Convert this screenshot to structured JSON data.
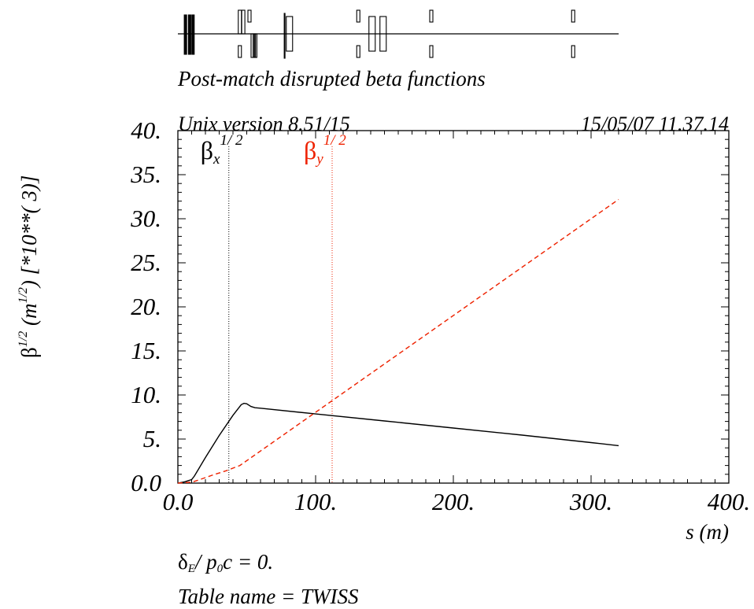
{
  "header": {
    "title": "Post-match disrupted beta functions",
    "version": "Unix version 8.51/15",
    "timestamp": "15/05/07  11.37.14"
  },
  "footer": {
    "delta_text": "δE/ p0c  =  0.",
    "table_text": "Table name = TWISS"
  },
  "colors": {
    "bx": "#000000",
    "by": "#ee2200"
  },
  "chart_data": {
    "type": "line",
    "title": "Post-match disrupted beta functions",
    "xlabel": "s (m)",
    "ylabel": "β1/2 (m1/2)   [*10**( 3)]",
    "xlim": [
      0,
      400
    ],
    "ylim": [
      0,
      40
    ],
    "x_ticks": [
      "0.0",
      "100.",
      "200.",
      "300.",
      "400."
    ],
    "y_ticks": [
      "0.0",
      "5.",
      "10.",
      "15.",
      "20.",
      "25.",
      "30.",
      "35.",
      "40."
    ],
    "legend": [
      {
        "label": "βx1/2",
        "line_style": "dotted",
        "color": "#000000",
        "x": 37
      },
      {
        "label": "βy1/2",
        "line_style": "dotted",
        "color": "#ee2200",
        "x": 112
      }
    ],
    "series": [
      {
        "name": "βx1/2",
        "color": "#000000",
        "style": "solid",
        "points": [
          [
            0,
            0
          ],
          [
            5,
            0.15
          ],
          [
            10,
            0.4
          ],
          [
            12,
            0.8
          ],
          [
            20,
            2.9
          ],
          [
            30,
            5.4
          ],
          [
            40,
            7.7
          ],
          [
            46,
            8.9
          ],
          [
            48,
            9.05
          ],
          [
            50,
            9.0
          ],
          [
            53,
            8.7
          ],
          [
            56,
            8.55
          ],
          [
            60,
            8.5
          ],
          [
            100,
            7.85
          ],
          [
            150,
            7.05
          ],
          [
            200,
            6.25
          ],
          [
            250,
            5.45
          ],
          [
            300,
            4.6
          ],
          [
            320,
            4.25
          ]
        ]
      },
      {
        "name": "βy1/2",
        "color": "#ee2200",
        "style": "dashed",
        "points": [
          [
            0,
            0
          ],
          [
            5,
            0.05
          ],
          [
            10,
            0.1
          ],
          [
            15,
            0.35
          ],
          [
            25,
            0.9
          ],
          [
            35,
            1.4
          ],
          [
            45,
            2.0
          ],
          [
            320,
            32.2
          ]
        ]
      }
    ]
  },
  "lattice": {
    "s_range": [
      0,
      320
    ],
    "elements": [
      {
        "s": 5.5,
        "type": "quad-f-thick"
      },
      {
        "s": 8.5,
        "type": "quad-f-thick"
      },
      {
        "s": 11,
        "type": "quad-f-thick"
      },
      {
        "s": 45,
        "type": "quad-f"
      },
      {
        "s": 47.5,
        "type": "quad-f"
      },
      {
        "s": 52,
        "type": "quad-f-small"
      },
      {
        "s": 45,
        "type": "quad-d-small"
      },
      {
        "s": 54,
        "type": "quad-d"
      },
      {
        "s": 55.5,
        "type": "quad-d"
      },
      {
        "s": 56.5,
        "type": "quad-d"
      },
      {
        "s": 77.5,
        "type": "marker"
      },
      {
        "s": 81,
        "type": "bend"
      },
      {
        "s": 131,
        "type": "quad-f-small"
      },
      {
        "s": 131,
        "type": "quad-d-small"
      },
      {
        "s": 141,
        "type": "bend"
      },
      {
        "s": 149,
        "type": "bend"
      },
      {
        "s": 184,
        "type": "quad-f-small"
      },
      {
        "s": 184,
        "type": "quad-d-small"
      },
      {
        "s": 287,
        "type": "quad-f-small"
      },
      {
        "s": 287,
        "type": "quad-d-small"
      }
    ]
  }
}
